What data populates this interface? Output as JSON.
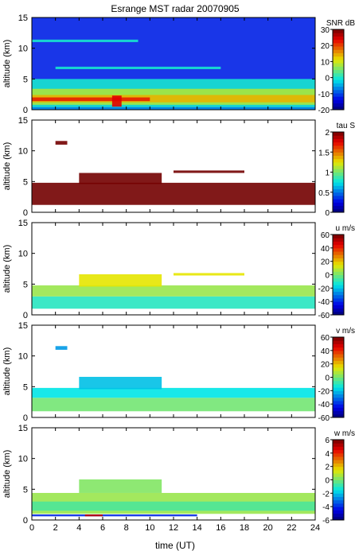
{
  "title": "Esrange MST radar 20070905",
  "xlabel": "time (UT)",
  "chart_data": [
    {
      "type": "heatmap",
      "variable": "SNR",
      "ylabel": "altitude (km)",
      "yticks": [
        0,
        5,
        10,
        15
      ],
      "ylim": [
        0,
        15
      ],
      "colorbar_label": "SNR dB",
      "colorbar_range": [
        -20,
        30
      ],
      "colorbar_ticks": [
        -20,
        -10,
        0,
        10,
        20,
        30
      ],
      "bands": [
        {
          "t0": 0,
          "t1": 24,
          "h0": 0,
          "h1": 15,
          "value": -12
        },
        {
          "t0": 0,
          "t1": 24,
          "h0": 0.4,
          "h1": 5,
          "value": 0
        },
        {
          "t0": 0,
          "t1": 24,
          "h0": 0.8,
          "h1": 3.4,
          "value": 8
        },
        {
          "t0": 0,
          "t1": 24,
          "h0": 1.2,
          "h1": 2.4,
          "value": 14
        },
        {
          "t0": 0,
          "t1": 10,
          "h0": 1.4,
          "h1": 2.0,
          "value": 22
        },
        {
          "t0": 6.8,
          "t1": 7.6,
          "h0": 0.5,
          "h1": 2.3,
          "value": 24
        },
        {
          "t0": 0,
          "t1": 9,
          "h0": 11.0,
          "h1": 11.4,
          "value": 0
        },
        {
          "t0": 2,
          "t1": 16,
          "h0": 6.6,
          "h1": 7.0,
          "value": 0
        },
        {
          "t0": 0,
          "t1": 24,
          "h0": 0,
          "h1": 0.4,
          "value": -6
        }
      ]
    },
    {
      "type": "heatmap",
      "variable": "tau",
      "ylabel": "altitude (km)",
      "yticks": [
        0,
        5,
        10,
        15
      ],
      "ylim": [
        0,
        15
      ],
      "colorbar_label": "tau S",
      "colorbar_range": [
        0,
        2
      ],
      "colorbar_ticks": [
        0,
        0.5,
        1,
        1.5,
        2
      ],
      "bands": [
        {
          "t0": 0,
          "t1": 24,
          "h0": 1.2,
          "h1": 4.8,
          "value": 2.0
        },
        {
          "t0": 4,
          "t1": 11,
          "h0": 4.6,
          "h1": 6.4,
          "value": 2.0
        },
        {
          "t0": 12,
          "t1": 18,
          "h0": 6.4,
          "h1": 6.8,
          "value": 2.0
        },
        {
          "t0": 2,
          "t1": 3,
          "h0": 11.0,
          "h1": 11.6,
          "value": 2.0
        }
      ]
    },
    {
      "type": "heatmap",
      "variable": "u",
      "ylabel": "altitude (km)",
      "yticks": [
        0,
        5,
        10,
        15
      ],
      "ylim": [
        0,
        15
      ],
      "colorbar_label": "u m/s",
      "colorbar_range": [
        -60,
        60
      ],
      "colorbar_ticks": [
        -60,
        -40,
        -20,
        0,
        20,
        40,
        60
      ],
      "bands": [
        {
          "t0": 0,
          "t1": 24,
          "h0": 1.0,
          "h1": 3.0,
          "value": -10
        },
        {
          "t0": 0,
          "t1": 24,
          "h0": 3.0,
          "h1": 4.8,
          "value": 5
        },
        {
          "t0": 4,
          "t1": 11,
          "h0": 4.6,
          "h1": 6.6,
          "value": 15
        },
        {
          "t0": 12,
          "t1": 18,
          "h0": 6.4,
          "h1": 6.8,
          "value": 15
        }
      ]
    },
    {
      "type": "heatmap",
      "variable": "v",
      "ylabel": "altitude (km)",
      "yticks": [
        0,
        5,
        10,
        15
      ],
      "ylim": [
        0,
        15
      ],
      "colorbar_label": "v m/s",
      "colorbar_range": [
        -60,
        60
      ],
      "colorbar_ticks": [
        -60,
        -40,
        -20,
        0,
        20,
        40,
        60
      ],
      "bands": [
        {
          "t0": 0,
          "t1": 24,
          "h0": 1.0,
          "h1": 3.2,
          "value": 0
        },
        {
          "t0": 0,
          "t1": 24,
          "h0": 3.2,
          "h1": 4.8,
          "value": -15
        },
        {
          "t0": 4,
          "t1": 11,
          "h0": 4.6,
          "h1": 6.6,
          "value": -20
        },
        {
          "t0": 2,
          "t1": 3,
          "h0": 11.0,
          "h1": 11.6,
          "value": -25
        }
      ]
    },
    {
      "type": "heatmap",
      "variable": "w",
      "ylabel": "altitude (km)",
      "yticks": [
        0,
        5,
        10,
        15
      ],
      "ylim": [
        0,
        15
      ],
      "colorbar_label": "w m/s",
      "colorbar_range": [
        -6,
        6
      ],
      "colorbar_ticks": [
        -6,
        -4,
        -2,
        0,
        2,
        4,
        6
      ],
      "bands": [
        {
          "t0": 0,
          "t1": 24,
          "h0": 1.0,
          "h1": 4.4,
          "value": 0.5
        },
        {
          "t0": 0,
          "t1": 24,
          "h0": 1.5,
          "h1": 3.0,
          "value": -0.5
        },
        {
          "t0": 4,
          "t1": 11,
          "h0": 4.4,
          "h1": 6.6,
          "value": 0.2
        },
        {
          "t0": 0,
          "t1": 14,
          "h0": 0.6,
          "h1": 0.9,
          "value": -4
        },
        {
          "t0": 4.5,
          "t1": 6,
          "h0": 0.6,
          "h1": 0.9,
          "value": 5
        }
      ]
    }
  ],
  "x_axis": {
    "range": [
      0,
      24
    ],
    "ticks": [
      0,
      2,
      4,
      6,
      8,
      10,
      12,
      14,
      16,
      18,
      20,
      22,
      24
    ],
    "unit": "UT"
  }
}
